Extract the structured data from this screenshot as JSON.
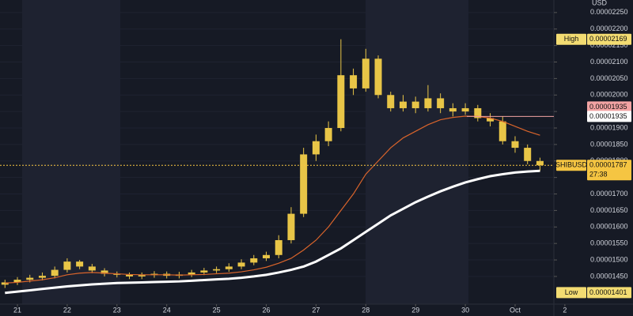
{
  "chart_data": {
    "type": "candlestick",
    "y_axis_title": "USD",
    "candle_color": "#e8c547",
    "x": [
      -6,
      0,
      6,
      12,
      18,
      24,
      30,
      36,
      42,
      48,
      54,
      60,
      66,
      72,
      78,
      84,
      90,
      96,
      102,
      108,
      114,
      120,
      126,
      132,
      138,
      144,
      150,
      156,
      162,
      168,
      174,
      180,
      186,
      192,
      198,
      204,
      210,
      216,
      222,
      228,
      234,
      240,
      246,
      252
    ],
    "open": [
      1.425e-05,
      1.432e-05,
      1.44e-05,
      1.446e-05,
      1.452e-05,
      1.47e-05,
      1.495e-05,
      1.48e-05,
      1.468e-05,
      1.458e-05,
      1.455e-05,
      1.45e-05,
      1.454e-05,
      1.458e-05,
      1.452e-05,
      1.456e-05,
      1.462e-05,
      1.468e-05,
      1.472e-05,
      1.48e-05,
      1.492e-05,
      1.505e-05,
      1.515e-05,
      1.56e-05,
      1.64e-05,
      1.82e-05,
      1.86e-05,
      1.9e-05,
      2.06e-05,
      2.02e-05,
      2.11e-05,
      2e-05,
      1.96e-05,
      1.98e-05,
      1.96e-05,
      1.99e-05,
      1.96e-05,
      1.95e-05,
      1.96e-05,
      1.93e-05,
      1.92e-05,
      1.86e-05,
      1.84e-05,
      1.8e-05
    ],
    "high": [
      1.44e-05,
      1.448e-05,
      1.455e-05,
      1.462e-05,
      1.48e-05,
      1.505e-05,
      1.5e-05,
      1.488e-05,
      1.475e-05,
      1.465e-05,
      1.462e-05,
      1.462e-05,
      1.466e-05,
      1.465e-05,
      1.464e-05,
      1.47e-05,
      1.476e-05,
      1.48e-05,
      1.49e-05,
      1.502e-05,
      1.515e-05,
      1.525e-05,
      1.575e-05,
      1.66e-05,
      1.84e-05,
      1.88e-05,
      1.92e-05,
      2.169e-05,
      2.08e-05,
      2.14e-05,
      2.12e-05,
      2.01e-05,
      2e-05,
      1.995e-05,
      2.03e-05,
      2.005e-05,
      1.975e-05,
      1.975e-05,
      1.97e-05,
      1.945e-05,
      1.935e-05,
      1.875e-05,
      1.85e-05,
      1.81e-05
    ],
    "low": [
      1.415e-05,
      1.424e-05,
      1.432e-05,
      1.438e-05,
      1.444e-05,
      1.462e-05,
      1.472e-05,
      1.46e-05,
      1.45e-05,
      1.447e-05,
      1.442e-05,
      1.442e-05,
      1.446e-05,
      1.444e-05,
      1.444e-05,
      1.448e-05,
      1.454e-05,
      1.46e-05,
      1.464e-05,
      1.472e-05,
      1.484e-05,
      1.497e-05,
      1.505e-05,
      1.55e-05,
      1.63e-05,
      1.8e-05,
      1.845e-05,
      1.89e-05,
      2e-05,
      2.01e-05,
      1.99e-05,
      1.95e-05,
      1.95e-05,
      1.945e-05,
      1.95e-05,
      1.945e-05,
      1.935e-05,
      1.94e-05,
      1.92e-05,
      1.905e-05,
      1.85e-05,
      1.825e-05,
      1.79e-05,
      1.77e-05
    ],
    "close": [
      1.432e-05,
      1.44e-05,
      1.446e-05,
      1.452e-05,
      1.47e-05,
      1.495e-05,
      1.48e-05,
      1.468e-05,
      1.458e-05,
      1.455e-05,
      1.45e-05,
      1.454e-05,
      1.458e-05,
      1.452e-05,
      1.456e-05,
      1.462e-05,
      1.468e-05,
      1.472e-05,
      1.48e-05,
      1.492e-05,
      1.505e-05,
      1.515e-05,
      1.56e-05,
      1.64e-05,
      1.82e-05,
      1.86e-05,
      1.9e-05,
      2.06e-05,
      2.02e-05,
      2.11e-05,
      2e-05,
      1.96e-05,
      1.98e-05,
      1.96e-05,
      1.99e-05,
      1.96e-05,
      1.95e-05,
      1.96e-05,
      1.93e-05,
      1.92e-05,
      1.86e-05,
      1.84e-05,
      1.8e-05,
      1.787e-05
    ],
    "series": [
      {
        "color": "#d9642b",
        "values": [
          1.43e-05,
          1.432e-05,
          1.436e-05,
          1.44e-05,
          1.446e-05,
          1.455e-05,
          1.46e-05,
          1.462e-05,
          1.46e-05,
          1.458e-05,
          1.456e-05,
          1.455e-05,
          1.455e-05,
          1.455e-05,
          1.454e-05,
          1.455e-05,
          1.456e-05,
          1.458e-05,
          1.46e-05,
          1.464e-05,
          1.47e-05,
          1.478e-05,
          1.49e-05,
          1.505e-05,
          1.53e-05,
          1.56e-05,
          1.6e-05,
          1.65e-05,
          1.7e-05,
          1.76e-05,
          1.8e-05,
          1.84e-05,
          1.87e-05,
          1.89e-05,
          1.91e-05,
          1.925e-05,
          1.932e-05,
          1.936e-05,
          1.935e-05,
          1.93e-05,
          1.92e-05,
          1.905e-05,
          1.89e-05,
          1.878e-05
        ]
      },
      {
        "color": "#ffffff",
        "values": [
          1.4e-05,
          1.404e-05,
          1.408e-05,
          1.412e-05,
          1.416e-05,
          1.42e-05,
          1.423e-05,
          1.426e-05,
          1.428e-05,
          1.43e-05,
          1.431e-05,
          1.432e-05,
          1.433e-05,
          1.434e-05,
          1.435e-05,
          1.437e-05,
          1.439e-05,
          1.441e-05,
          1.443e-05,
          1.446e-05,
          1.45e-05,
          1.455e-05,
          1.462e-05,
          1.47e-05,
          1.48e-05,
          1.495e-05,
          1.515e-05,
          1.535e-05,
          1.56e-05,
          1.585e-05,
          1.61e-05,
          1.635e-05,
          1.655e-05,
          1.675e-05,
          1.692e-05,
          1.708e-05,
          1.722e-05,
          1.735e-05,
          1.745e-05,
          1.754e-05,
          1.76e-05,
          1.765e-05,
          1.768e-05,
          1.77e-05
        ]
      }
    ],
    "xlim": [
      -8.4,
      258.7
    ],
    "xticks": [
      {
        "value": 0,
        "label": "21"
      },
      {
        "value": 24,
        "label": "22"
      },
      {
        "value": 48,
        "label": "23"
      },
      {
        "value": 72,
        "label": "24"
      },
      {
        "value": 96,
        "label": "25"
      },
      {
        "value": 120,
        "label": "26"
      },
      {
        "value": 144,
        "label": "27"
      },
      {
        "value": 168,
        "label": "28"
      },
      {
        "value": 192,
        "label": "29"
      },
      {
        "value": 216,
        "label": "30"
      },
      {
        "value": 240,
        "label": "Oct"
      },
      {
        "value": 264,
        "label": "2"
      }
    ],
    "ylim": [
      1.366e-05,
      2.288e-05
    ],
    "yticks": [
      {
        "value": 2.25e-05,
        "label": "0.00002250"
      },
      {
        "value": 2.2e-05,
        "label": "0.00002200"
      },
      {
        "value": 2.15e-05,
        "label": "0.00002150"
      },
      {
        "value": 2.1e-05,
        "label": "0.00002100"
      },
      {
        "value": 2.05e-05,
        "label": "0.00002050"
      },
      {
        "value": 2e-05,
        "label": "0.00002000"
      },
      {
        "value": 1.95e-05,
        "label": "0.00001950"
      },
      {
        "value": 1.9e-05,
        "label": "0.00001900"
      },
      {
        "value": 1.85e-05,
        "label": "0.00001850"
      },
      {
        "value": 1.8e-05,
        "label": "0.00001800"
      },
      {
        "value": 1.75e-05,
        "label": "0.00001750"
      },
      {
        "value": 1.7e-05,
        "label": "0.00001700"
      },
      {
        "value": 1.65e-05,
        "label": "0.00001650"
      },
      {
        "value": 1.6e-05,
        "label": "0.00001600"
      },
      {
        "value": 1.55e-05,
        "label": "0.00001550"
      },
      {
        "value": 1.5e-05,
        "label": "0.00001500"
      },
      {
        "value": 1.45e-05,
        "label": "0.00001450"
      }
    ],
    "annotations": [
      {
        "label": "High",
        "value": 2.169e-05,
        "value_label": "0.00002169",
        "color": "#f3dc72"
      },
      {
        "value": 1.935e-05,
        "value_label": "0.00001935",
        "color": "#f2a3a3",
        "line_style": "solid"
      },
      {
        "value": 1.935e-05,
        "value_label": "0.00001935",
        "color": "#ffffff"
      },
      {
        "label": "SHIBUSD",
        "value": 1.787e-05,
        "value_label": "0.00001787",
        "sublabel": "27:38",
        "color": "#f5c542",
        "line_style": "dashed"
      },
      {
        "label": "Low",
        "value": 1.401e-05,
        "value_label": "0.00001401",
        "color": "#f3dc72"
      }
    ]
  }
}
